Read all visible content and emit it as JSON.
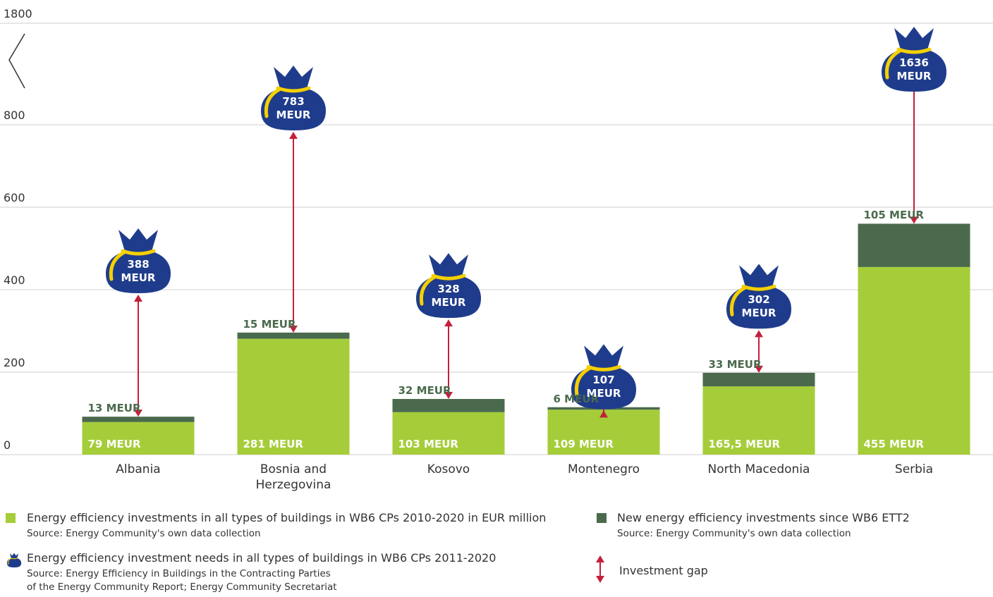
{
  "chart_data": {
    "type": "bar",
    "stacked": true,
    "axis_break": true,
    "categories": [
      "Albania",
      "Bosnia and Herzegovina",
      "Kosovo",
      "Montenegro",
      "North Macedonia",
      "Serbia"
    ],
    "ylim": [
      0,
      1800
    ],
    "yticks": [
      0,
      200,
      400,
      600,
      800,
      1800
    ],
    "grid": true,
    "series": [
      {
        "name": "Energy efficiency investments in all types of buildings in WB6 CPs 2010-2020 in EUR million",
        "source": [
          "Source: Energy Community's own data collection"
        ],
        "color": "#a5cd39",
        "values": [
          79,
          281,
          103,
          109,
          165.5,
          455
        ],
        "value_labels": [
          "79 MEUR",
          "281 MEUR",
          "103 MEUR",
          "109 MEUR",
          "165,5 MEUR",
          "455 MEUR"
        ]
      },
      {
        "name": "New energy efficiency investments since WB6 ETT2",
        "source": [
          "Source: Energy Community's own data collection"
        ],
        "color": "#4b6a4d",
        "values": [
          13,
          15,
          32,
          6,
          33,
          105
        ],
        "value_labels": [
          "13 MEUR",
          "15 MEUR",
          "32 MEUR",
          "6 MEUR",
          "33 MEUR",
          "105 MEUR"
        ]
      }
    ],
    "needs": {
      "name": "Energy efficiency investment needs in all types of buildings in WB6 CPs 2011-2020",
      "source": [
        "Source: Energy Efficiency in Buildings in the Contracting Parties",
        "of the Energy Community Report; Energy Community Secretariat"
      ],
      "color": "#1f3c8c",
      "values": [
        388,
        783,
        328,
        107,
        302,
        1636
      ],
      "value_labels": [
        "388 MEUR",
        "783 MEUR",
        "328 MEUR",
        "107 MEUR",
        "302 MEUR",
        "1636 MEUR"
      ]
    },
    "gap": {
      "name": "Investment gap",
      "color": "#c41f3a"
    }
  }
}
